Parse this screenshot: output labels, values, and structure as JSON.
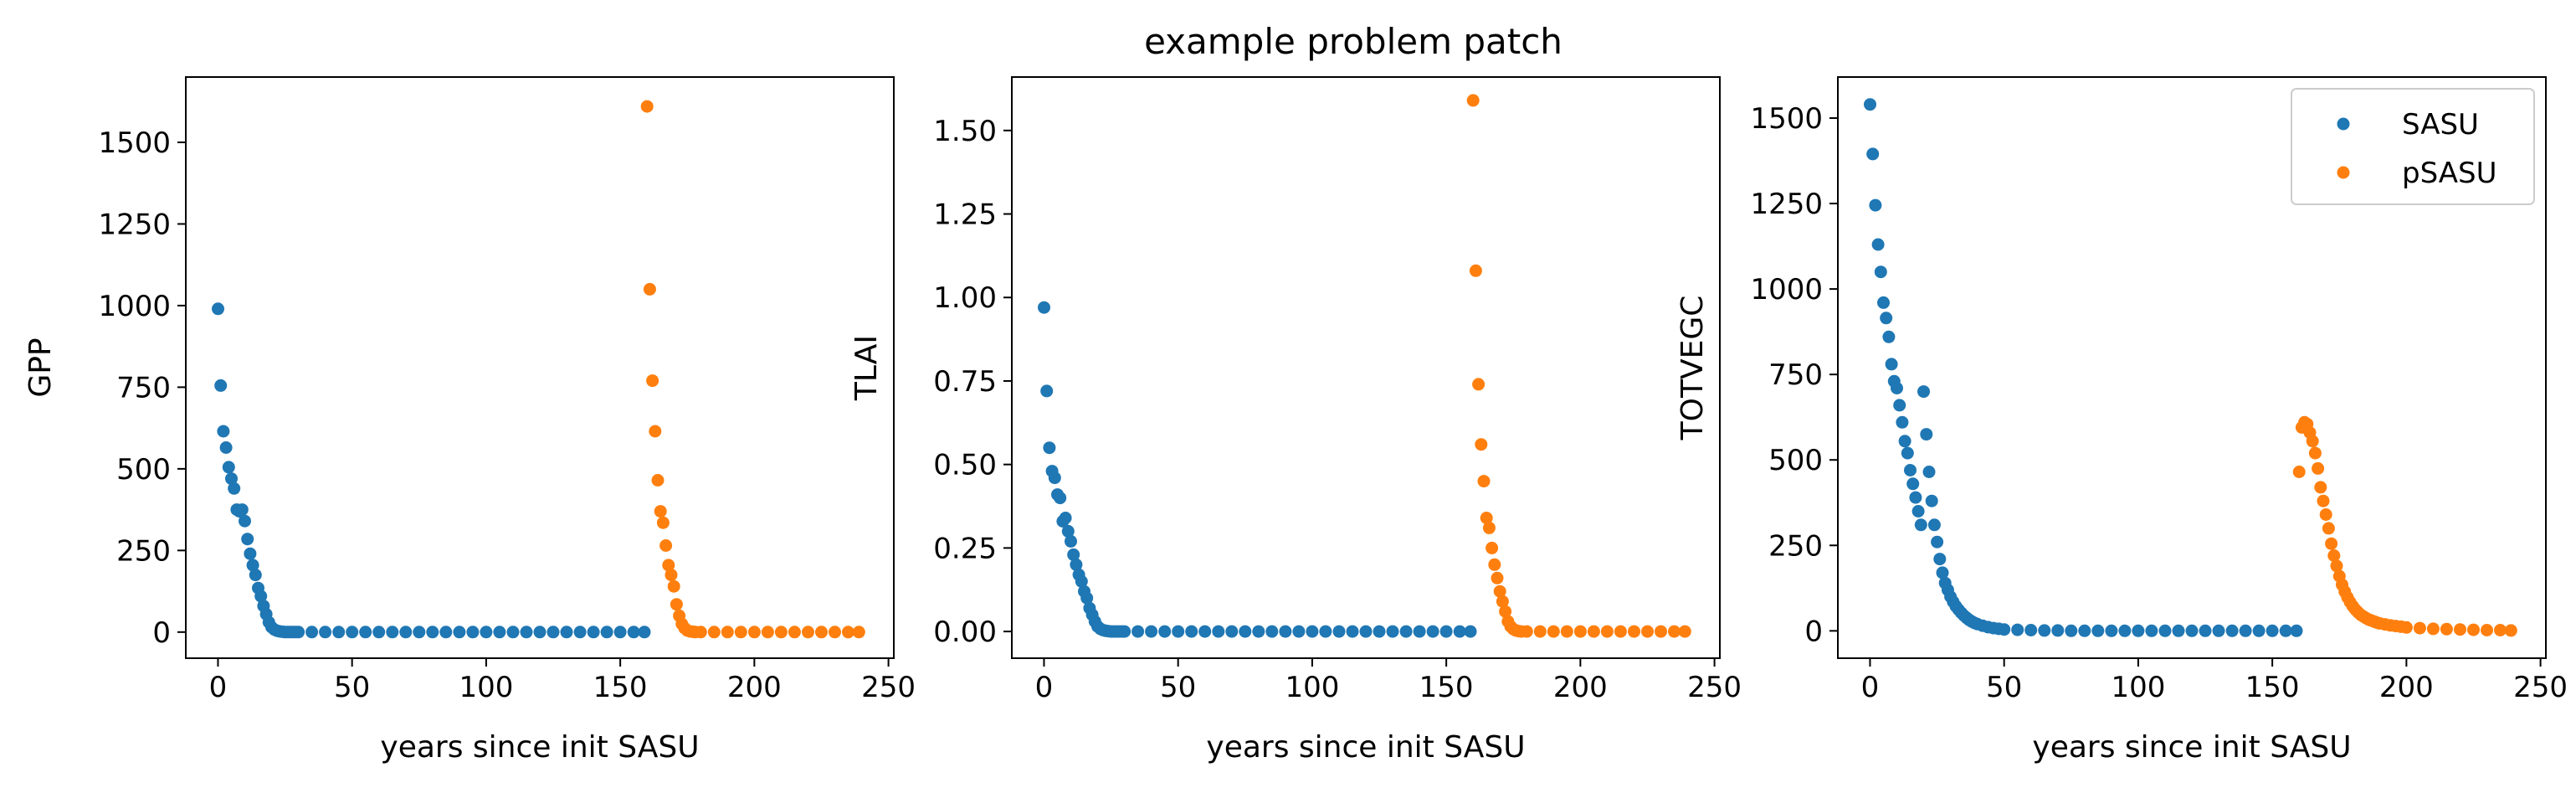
{
  "title": "example problem patch",
  "chart_data": [
    {
      "type": "scatter",
      "ylabel": "GPP",
      "xlabel": "years since init SASU",
      "xlim": [
        -12,
        252
      ],
      "ylim": [
        -80,
        1700
      ],
      "xticks": [
        0,
        50,
        100,
        150,
        200,
        250
      ],
      "yticks": [
        0,
        250,
        500,
        750,
        1000,
        1250,
        1500
      ],
      "ytick_labels": [
        "0",
        "250",
        "500",
        "750",
        "1000",
        "1250",
        "1500"
      ],
      "series": [
        {
          "name": "SASU",
          "color": "#1f77b4",
          "x": [
            0,
            1,
            2,
            3,
            4,
            5,
            6,
            7,
            8,
            9,
            10,
            11,
            12,
            13,
            14,
            15,
            16,
            17,
            18,
            19,
            20,
            21,
            22,
            23,
            24,
            25,
            26,
            27,
            28,
            29,
            30,
            35,
            40,
            45,
            50,
            55,
            60,
            65,
            70,
            75,
            80,
            85,
            90,
            95,
            100,
            105,
            110,
            115,
            120,
            125,
            130,
            135,
            140,
            145,
            150,
            155,
            159
          ],
          "y": [
            990,
            755,
            615,
            565,
            505,
            470,
            440,
            375,
            370,
            375,
            340,
            285,
            240,
            205,
            175,
            135,
            110,
            80,
            55,
            30,
            15,
            8,
            4,
            2,
            1,
            0,
            0,
            0,
            0,
            0,
            0,
            0,
            0,
            0,
            0,
            0,
            0,
            0,
            0,
            0,
            0,
            0,
            0,
            0,
            0,
            0,
            0,
            0,
            0,
            0,
            0,
            0,
            0,
            0,
            0,
            0,
            0
          ]
        },
        {
          "name": "pSASU",
          "color": "#ff7f0e",
          "x": [
            160,
            161,
            162,
            163,
            164,
            165,
            166,
            167,
            168,
            169,
            170,
            171,
            172,
            173,
            174,
            175,
            176,
            177,
            178,
            180,
            185,
            190,
            195,
            200,
            205,
            210,
            215,
            220,
            225,
            230,
            235,
            239
          ],
          "y": [
            1610,
            1050,
            770,
            615,
            465,
            370,
            335,
            265,
            205,
            175,
            140,
            85,
            50,
            25,
            12,
            5,
            2,
            1,
            0,
            0,
            0,
            0,
            0,
            0,
            0,
            0,
            0,
            0,
            0,
            0,
            0,
            0
          ]
        }
      ]
    },
    {
      "type": "scatter",
      "ylabel": "TLAI",
      "xlabel": "years since init SASU",
      "xlim": [
        -12,
        252
      ],
      "ylim": [
        -0.08,
        1.66
      ],
      "xticks": [
        0,
        50,
        100,
        150,
        200,
        250
      ],
      "yticks": [
        0,
        0.25,
        0.5,
        0.75,
        1.0,
        1.25,
        1.5
      ],
      "ytick_labels": [
        "0.00",
        "0.25",
        "0.50",
        "0.75",
        "1.00",
        "1.25",
        "1.50"
      ],
      "series": [
        {
          "name": "SASU",
          "color": "#1f77b4",
          "x": [
            0,
            1,
            2,
            3,
            4,
            5,
            6,
            7,
            8,
            9,
            10,
            11,
            12,
            13,
            14,
            15,
            16,
            17,
            18,
            19,
            20,
            21,
            22,
            23,
            24,
            25,
            26,
            27,
            28,
            29,
            30,
            35,
            40,
            45,
            50,
            55,
            60,
            65,
            70,
            75,
            80,
            85,
            90,
            95,
            100,
            105,
            110,
            115,
            120,
            125,
            130,
            135,
            140,
            145,
            150,
            155,
            159
          ],
          "y": [
            0.97,
            0.72,
            0.55,
            0.48,
            0.46,
            0.41,
            0.4,
            0.33,
            0.34,
            0.3,
            0.27,
            0.23,
            0.2,
            0.17,
            0.15,
            0.12,
            0.1,
            0.07,
            0.05,
            0.03,
            0.015,
            0.008,
            0.004,
            0.002,
            0.001,
            0,
            0,
            0,
            0,
            0,
            0,
            0,
            0,
            0,
            0,
            0,
            0,
            0,
            0,
            0,
            0,
            0,
            0,
            0,
            0,
            0,
            0,
            0,
            0,
            0,
            0,
            0,
            0,
            0,
            0,
            0,
            0
          ]
        },
        {
          "name": "pSASU",
          "color": "#ff7f0e",
          "x": [
            160,
            161,
            162,
            163,
            164,
            165,
            166,
            167,
            168,
            169,
            170,
            171,
            172,
            173,
            174,
            175,
            176,
            177,
            178,
            180,
            185,
            190,
            195,
            200,
            205,
            210,
            215,
            220,
            225,
            230,
            235,
            239
          ],
          "y": [
            1.59,
            1.08,
            0.74,
            0.56,
            0.45,
            0.34,
            0.31,
            0.25,
            0.2,
            0.16,
            0.12,
            0.09,
            0.06,
            0.03,
            0.015,
            0.007,
            0.003,
            0.001,
            0,
            0,
            0,
            0,
            0,
            0,
            0,
            0,
            0,
            0,
            0,
            0,
            0,
            0
          ]
        }
      ]
    },
    {
      "type": "scatter",
      "ylabel": "TOTVEGC",
      "xlabel": "years since init SASU",
      "xlim": [
        -12,
        252
      ],
      "ylim": [
        -80,
        1620
      ],
      "xticks": [
        0,
        50,
        100,
        150,
        200,
        250
      ],
      "yticks": [
        0,
        250,
        500,
        750,
        1000,
        1250,
        1500
      ],
      "ytick_labels": [
        "0",
        "250",
        "500",
        "750",
        "1000",
        "1250",
        "1500"
      ],
      "legend": {
        "location": "upper right",
        "entries": [
          "SASU",
          "pSASU"
        ]
      },
      "series": [
        {
          "name": "SASU",
          "color": "#1f77b4",
          "x": [
            0,
            1,
            2,
            3,
            4,
            5,
            6,
            7,
            8,
            9,
            10,
            11,
            12,
            13,
            14,
            15,
            16,
            17,
            18,
            19,
            20,
            21,
            22,
            23,
            24,
            25,
            26,
            27,
            28,
            29,
            30,
            31,
            32,
            33,
            34,
            35,
            36,
            37,
            38,
            39,
            40,
            42,
            44,
            46,
            48,
            50,
            55,
            60,
            65,
            70,
            75,
            80,
            85,
            90,
            95,
            100,
            105,
            110,
            115,
            120,
            125,
            130,
            135,
            140,
            145,
            150,
            155,
            159
          ],
          "y": [
            1540,
            1395,
            1245,
            1130,
            1050,
            960,
            915,
            860,
            780,
            730,
            710,
            660,
            610,
            555,
            520,
            470,
            430,
            390,
            350,
            310,
            700,
            575,
            465,
            380,
            310,
            260,
            210,
            170,
            140,
            120,
            100,
            85,
            72,
            62,
            53,
            45,
            38,
            32,
            27,
            23,
            20,
            15,
            11,
            8,
            6,
            4,
            3,
            2,
            1,
            1,
            0,
            0,
            0,
            0,
            0,
            0,
            0,
            0,
            0,
            0,
            0,
            0,
            0,
            0,
            0,
            0,
            0,
            0
          ]
        },
        {
          "name": "pSASU",
          "color": "#ff7f0e",
          "x": [
            160,
            161,
            162,
            163,
            164,
            165,
            166,
            167,
            168,
            169,
            170,
            171,
            172,
            173,
            174,
            175,
            176,
            177,
            178,
            179,
            180,
            181,
            182,
            183,
            184,
            185,
            186,
            187,
            188,
            189,
            190,
            192,
            194,
            196,
            198,
            200,
            205,
            210,
            215,
            220,
            225,
            230,
            235,
            239
          ],
          "y": [
            465,
            595,
            610,
            605,
            580,
            555,
            520,
            475,
            420,
            380,
            340,
            300,
            255,
            220,
            190,
            160,
            135,
            115,
            98,
            84,
            72,
            62,
            54,
            47,
            42,
            37,
            33,
            30,
            27,
            24,
            22,
            19,
            16,
            14,
            12,
            10,
            8,
            6,
            5,
            4,
            3,
            2,
            2,
            1
          ]
        }
      ]
    }
  ]
}
